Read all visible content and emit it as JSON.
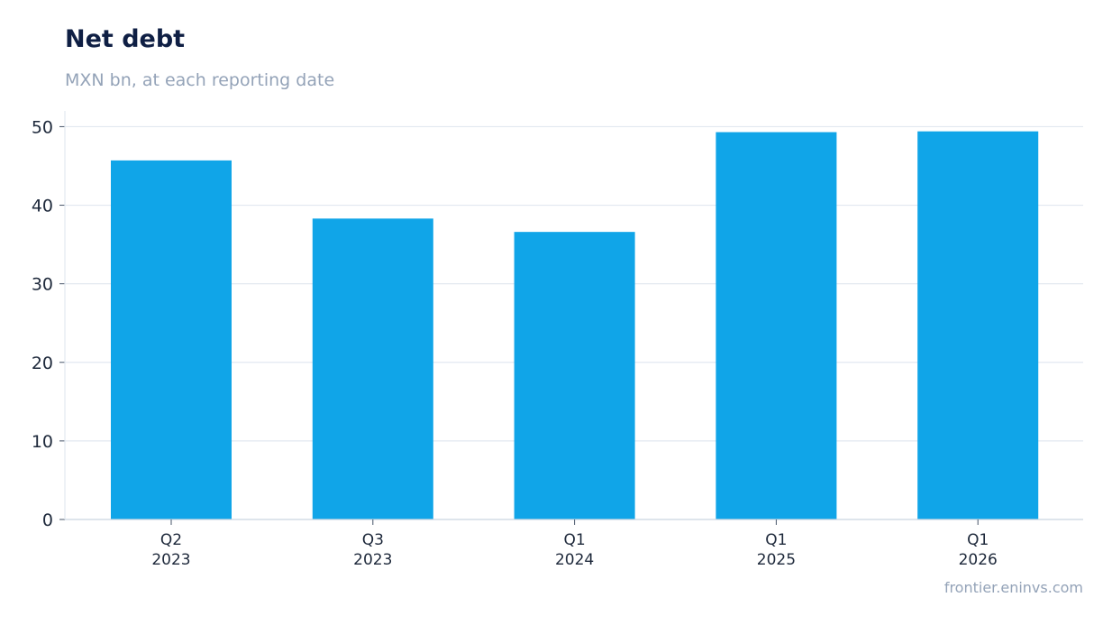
{
  "header": {
    "title": "Net debt",
    "subtitle": "MXN bn, at each reporting date"
  },
  "footer": {
    "source": "frontier.eninvs.com"
  },
  "colors": {
    "bar": "#10a5e8",
    "title": "#0f1f44",
    "muted": "#94a3b8",
    "grid": "#e2e8f0",
    "axis_text": "#1e293b"
  },
  "chart_data": {
    "type": "bar",
    "title": "Net debt",
    "subtitle": "MXN bn, at each reporting date",
    "categories": [
      [
        "Q2",
        "2023"
      ],
      [
        "Q3",
        "2023"
      ],
      [
        "Q1",
        "2024"
      ],
      [
        "Q1",
        "2025"
      ],
      [
        "Q1",
        "2026"
      ]
    ],
    "values": [
      45.7,
      38.3,
      36.6,
      49.3,
      49.4
    ],
    "ylim": [
      0,
      52
    ],
    "yticks": [
      0,
      10,
      20,
      30,
      40,
      50
    ],
    "xlabel": "",
    "ylabel": "",
    "grid": true,
    "legend": "none"
  }
}
